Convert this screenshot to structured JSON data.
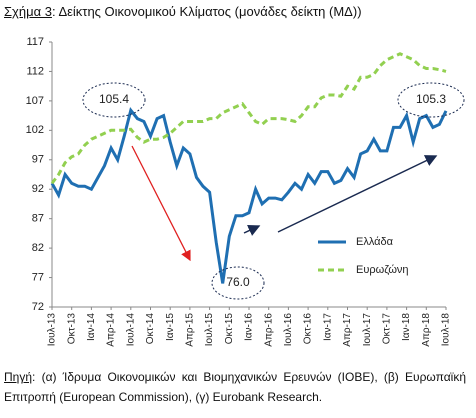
{
  "chart_data": {
    "type": "line",
    "title_label": "Σχήμα 3",
    "title": ": Δείκτης Οικονομικού Κλίματος (μονάδες δείκτη (ΜΔ))",
    "categories": [
      "Ιουλ-13",
      null,
      null,
      "Οκτ-13",
      null,
      null,
      "Ιαν-14",
      null,
      null,
      "Απρ-14",
      null,
      null,
      "Ιουλ-14",
      null,
      null,
      "Οκτ-14",
      null,
      null,
      "Ιαν-15",
      null,
      null,
      "Απρ-15",
      null,
      null,
      "Ιουλ-15",
      null,
      null,
      "Οκτ-15",
      null,
      null,
      "Ιαν-16",
      null,
      null,
      "Απρ-16",
      null,
      null,
      "Ιουλ-16",
      null,
      null,
      "Οκτ-16",
      null,
      null,
      "Ιαν-17",
      null,
      null,
      "Απρ-17",
      null,
      null,
      "Ιουλ-17",
      null,
      null,
      "Οκτ-17",
      null,
      null,
      "Ιαν-18",
      null,
      null,
      "Απρ-18",
      null,
      null,
      "Ιουλ-18"
    ],
    "series": [
      {
        "name": "Ελλάδα",
        "color": "#1f6fb2",
        "dash": false,
        "values": [
          93,
          91,
          94.5,
          93,
          92.5,
          92.5,
          92,
          94,
          96,
          99,
          97,
          101,
          105.4,
          104,
          103.5,
          101,
          104,
          104.5,
          100,
          96,
          99,
          98,
          94,
          92.5,
          91.5,
          83,
          76,
          84,
          87.5,
          87.5,
          88,
          92,
          89.5,
          90.5,
          90.5,
          90.2,
          91.5,
          93,
          92,
          94.5,
          93,
          95,
          95,
          93,
          93.5,
          95.5,
          94,
          98,
          98.5,
          100.5,
          98.5,
          98.5,
          102.5,
          102.5,
          104.5,
          100,
          104,
          104.5,
          102.5,
          103,
          105.3
        ]
      },
      {
        "name": "Ευρωζώνη",
        "color": "#92d050",
        "dash": true,
        "values": [
          93,
          94.5,
          96.5,
          97.5,
          98,
          99.5,
          100.5,
          101,
          101.5,
          102,
          102,
          102,
          102.2,
          100.8,
          100,
          100.5,
          100.5,
          100.8,
          101.5,
          102.5,
          103.5,
          103.5,
          103.5,
          103.5,
          104,
          104,
          105,
          105.5,
          106,
          106.5,
          105,
          103.5,
          103,
          104,
          104,
          104,
          103.8,
          103.5,
          104.5,
          106,
          106,
          107.5,
          108,
          108,
          107.8,
          109.5,
          109,
          111,
          111,
          111.5,
          113,
          114,
          114.5,
          115,
          114.5,
          114,
          113,
          112.5,
          112.5,
          112.3,
          112
        ]
      }
    ],
    "ylim": [
      72,
      117
    ],
    "yticks": [
      72,
      77,
      82,
      87,
      92,
      97,
      102,
      107,
      112,
      117
    ],
    "annotations": [
      "105.4",
      "76.0",
      "105.3"
    ],
    "source_label": "Πηγή",
    "source": ": (α) Ίδρυμα Οικονομικών και Βιομηχανικών Ερευνών (ΙΟΒΕ), (β) Ευρωπαϊκή Επιτροπή (European Commission), (γ) Eurobank Research."
  }
}
